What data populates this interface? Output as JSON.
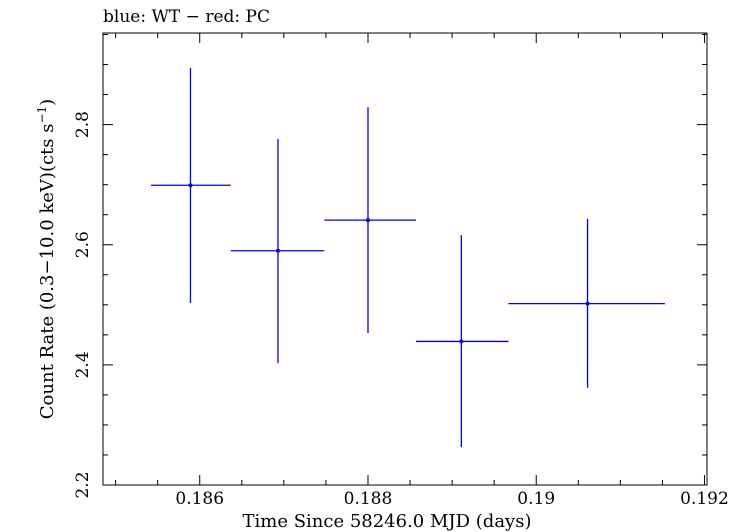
{
  "chart_data": {
    "type": "scatter",
    "title": "blue: WT − red: PC",
    "xlabel": "Time Since 58246.0 MJD (days)",
    "ylabel_main": "Count Rate (0.3−10.0 keV)(cts s",
    "ylabel_sup": "−1",
    "ylabel_close": ")",
    "xlim": [
      0.18485,
      0.19203
    ],
    "ylim": [
      2.2,
      2.9525
    ],
    "xticks": [
      0.186,
      0.188,
      0.19,
      0.192
    ],
    "xtick_labels": [
      "0.186",
      "0.188",
      "0.19",
      "0.192"
    ],
    "yticks": [
      2.2,
      2.4,
      2.6,
      2.8
    ],
    "ytick_labels": [
      "2.2",
      "2.4",
      "2.6",
      "2.8"
    ],
    "x_minor_step": 0.0005,
    "y_minor_step": 0.05,
    "series": [
      {
        "color": "#0000ee",
        "points": [
          {
            "x": 0.18589,
            "xerr_lo": 0.18542,
            "xerr_hi": 0.18637,
            "y": 2.699,
            "yerr_lo": 2.503,
            "yerr_hi": 2.894
          },
          {
            "x": 0.18693,
            "xerr_lo": 0.18637,
            "xerr_hi": 0.18748,
            "y": 2.59,
            "yerr_lo": 2.403,
            "yerr_hi": 2.776
          },
          {
            "x": 0.188,
            "xerr_lo": 0.18748,
            "xerr_hi": 0.18857,
            "y": 2.641,
            "yerr_lo": 2.453,
            "yerr_hi": 2.829
          },
          {
            "x": 0.18911,
            "xerr_lo": 0.18857,
            "xerr_hi": 0.18967,
            "y": 2.439,
            "yerr_lo": 2.263,
            "yerr_hi": 2.616
          },
          {
            "x": 0.19061,
            "xerr_lo": 0.18967,
            "xerr_hi": 0.19153,
            "y": 2.502,
            "yerr_lo": 2.362,
            "yerr_hi": 2.643
          }
        ]
      }
    ]
  }
}
